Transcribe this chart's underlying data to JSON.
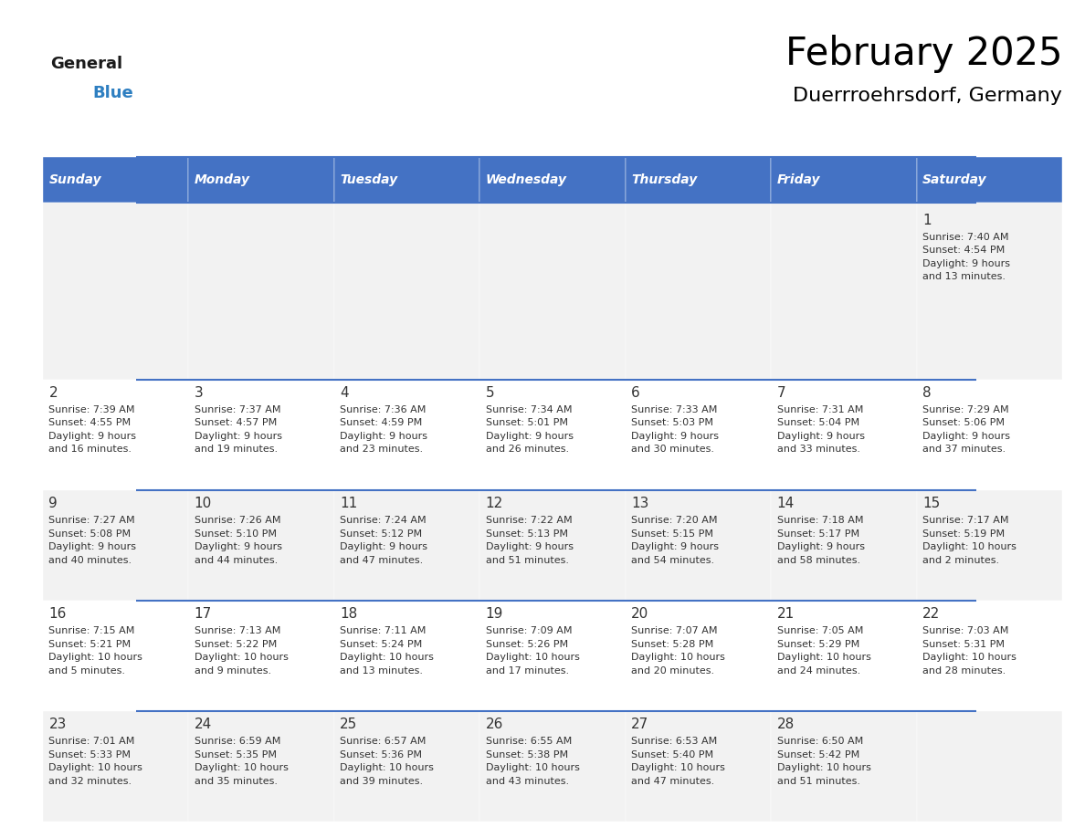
{
  "title": "February 2025",
  "subtitle": "Duerrroehrsdorf, Germany",
  "header_bg": "#4472C4",
  "header_text_color": "#FFFFFF",
  "cell_bg_odd": "#F2F2F2",
  "cell_bg_even": "#FFFFFF",
  "border_color": "#4472C4",
  "text_color": "#333333",
  "days_of_week": [
    "Sunday",
    "Monday",
    "Tuesday",
    "Wednesday",
    "Thursday",
    "Friday",
    "Saturday"
  ],
  "weeks": [
    [
      {
        "day": "",
        "info": ""
      },
      {
        "day": "",
        "info": ""
      },
      {
        "day": "",
        "info": ""
      },
      {
        "day": "",
        "info": ""
      },
      {
        "day": "",
        "info": ""
      },
      {
        "day": "",
        "info": ""
      },
      {
        "day": "1",
        "info": "Sunrise: 7:40 AM\nSunset: 4:54 PM\nDaylight: 9 hours\nand 13 minutes."
      }
    ],
    [
      {
        "day": "2",
        "info": "Sunrise: 7:39 AM\nSunset: 4:55 PM\nDaylight: 9 hours\nand 16 minutes."
      },
      {
        "day": "3",
        "info": "Sunrise: 7:37 AM\nSunset: 4:57 PM\nDaylight: 9 hours\nand 19 minutes."
      },
      {
        "day": "4",
        "info": "Sunrise: 7:36 AM\nSunset: 4:59 PM\nDaylight: 9 hours\nand 23 minutes."
      },
      {
        "day": "5",
        "info": "Sunrise: 7:34 AM\nSunset: 5:01 PM\nDaylight: 9 hours\nand 26 minutes."
      },
      {
        "day": "6",
        "info": "Sunrise: 7:33 AM\nSunset: 5:03 PM\nDaylight: 9 hours\nand 30 minutes."
      },
      {
        "day": "7",
        "info": "Sunrise: 7:31 AM\nSunset: 5:04 PM\nDaylight: 9 hours\nand 33 minutes."
      },
      {
        "day": "8",
        "info": "Sunrise: 7:29 AM\nSunset: 5:06 PM\nDaylight: 9 hours\nand 37 minutes."
      }
    ],
    [
      {
        "day": "9",
        "info": "Sunrise: 7:27 AM\nSunset: 5:08 PM\nDaylight: 9 hours\nand 40 minutes."
      },
      {
        "day": "10",
        "info": "Sunrise: 7:26 AM\nSunset: 5:10 PM\nDaylight: 9 hours\nand 44 minutes."
      },
      {
        "day": "11",
        "info": "Sunrise: 7:24 AM\nSunset: 5:12 PM\nDaylight: 9 hours\nand 47 minutes."
      },
      {
        "day": "12",
        "info": "Sunrise: 7:22 AM\nSunset: 5:13 PM\nDaylight: 9 hours\nand 51 minutes."
      },
      {
        "day": "13",
        "info": "Sunrise: 7:20 AM\nSunset: 5:15 PM\nDaylight: 9 hours\nand 54 minutes."
      },
      {
        "day": "14",
        "info": "Sunrise: 7:18 AM\nSunset: 5:17 PM\nDaylight: 9 hours\nand 58 minutes."
      },
      {
        "day": "15",
        "info": "Sunrise: 7:17 AM\nSunset: 5:19 PM\nDaylight: 10 hours\nand 2 minutes."
      }
    ],
    [
      {
        "day": "16",
        "info": "Sunrise: 7:15 AM\nSunset: 5:21 PM\nDaylight: 10 hours\nand 5 minutes."
      },
      {
        "day": "17",
        "info": "Sunrise: 7:13 AM\nSunset: 5:22 PM\nDaylight: 10 hours\nand 9 minutes."
      },
      {
        "day": "18",
        "info": "Sunrise: 7:11 AM\nSunset: 5:24 PM\nDaylight: 10 hours\nand 13 minutes."
      },
      {
        "day": "19",
        "info": "Sunrise: 7:09 AM\nSunset: 5:26 PM\nDaylight: 10 hours\nand 17 minutes."
      },
      {
        "day": "20",
        "info": "Sunrise: 7:07 AM\nSunset: 5:28 PM\nDaylight: 10 hours\nand 20 minutes."
      },
      {
        "day": "21",
        "info": "Sunrise: 7:05 AM\nSunset: 5:29 PM\nDaylight: 10 hours\nand 24 minutes."
      },
      {
        "day": "22",
        "info": "Sunrise: 7:03 AM\nSunset: 5:31 PM\nDaylight: 10 hours\nand 28 minutes."
      }
    ],
    [
      {
        "day": "23",
        "info": "Sunrise: 7:01 AM\nSunset: 5:33 PM\nDaylight: 10 hours\nand 32 minutes."
      },
      {
        "day": "24",
        "info": "Sunrise: 6:59 AM\nSunset: 5:35 PM\nDaylight: 10 hours\nand 35 minutes."
      },
      {
        "day": "25",
        "info": "Sunrise: 6:57 AM\nSunset: 5:36 PM\nDaylight: 10 hours\nand 39 minutes."
      },
      {
        "day": "26",
        "info": "Sunrise: 6:55 AM\nSunset: 5:38 PM\nDaylight: 10 hours\nand 43 minutes."
      },
      {
        "day": "27",
        "info": "Sunrise: 6:53 AM\nSunset: 5:40 PM\nDaylight: 10 hours\nand 47 minutes."
      },
      {
        "day": "28",
        "info": "Sunrise: 6:50 AM\nSunset: 5:42 PM\nDaylight: 10 hours\nand 51 minutes."
      },
      {
        "day": "",
        "info": ""
      }
    ]
  ],
  "logo_general_color": "#1a1a1a",
  "logo_blue_color": "#2e7fc1",
  "logo_triangle_color": "#2e7fc1",
  "row_heights": [
    1.6,
    1.0,
    1.0,
    1.0,
    1.0
  ]
}
